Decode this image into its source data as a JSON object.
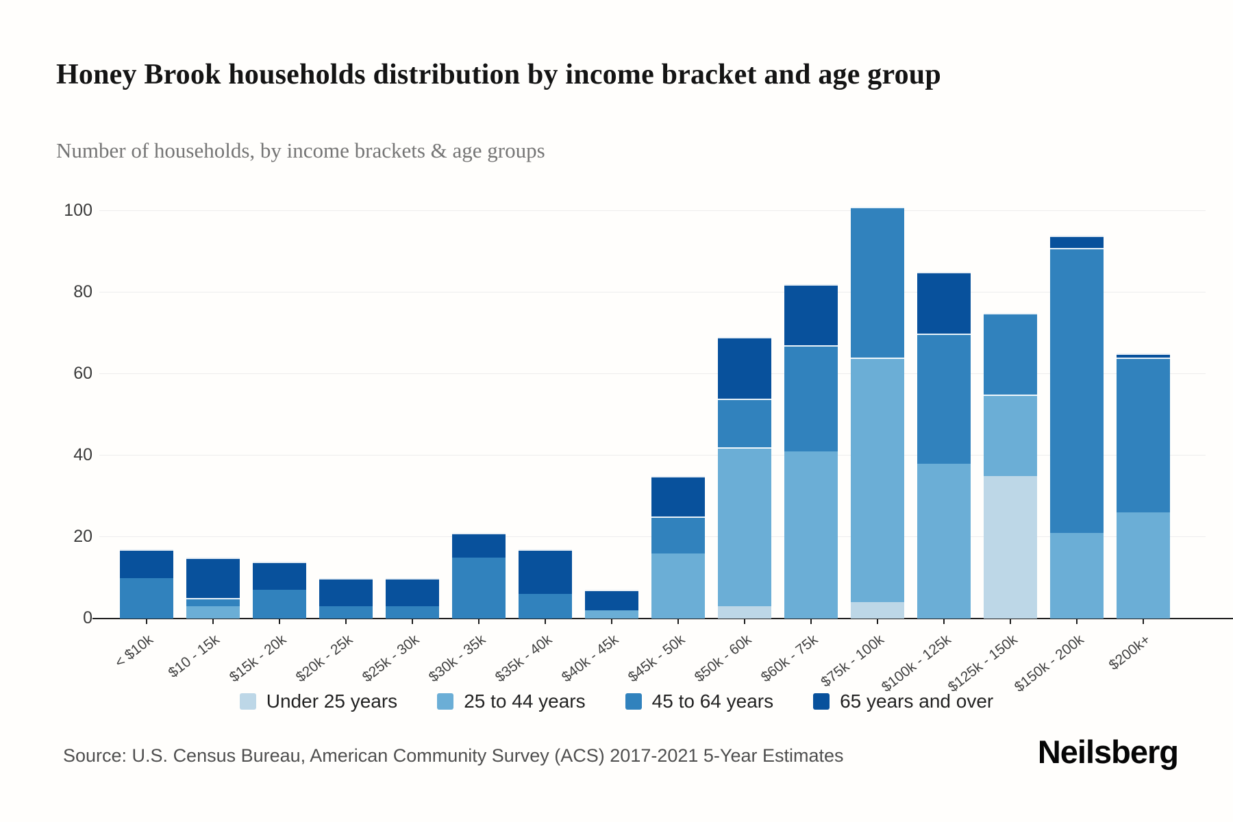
{
  "header": {
    "title": "Honey Brook households distribution by income bracket and age group",
    "subtitle": "Number of households, by income brackets & age groups"
  },
  "footer": {
    "source": "Source: U.S. Census Bureau, American Community Survey (ACS) 2017-2021 5-Year Estimates",
    "brand": "Neilsberg"
  },
  "chart_data": {
    "type": "bar",
    "stacked": true,
    "title": "Honey Brook households distribution by income bracket and age group",
    "xlabel": "",
    "ylabel": "Number of households",
    "grid": true,
    "legend_position": "bottom",
    "ylim": [
      0,
      103
    ],
    "yticks": [
      0,
      20,
      40,
      60,
      80,
      100
    ],
    "categories": [
      "< $10k",
      "$10 - 15k",
      "$15k - 20k",
      "$20k - 25k",
      "$25k - 30k",
      "$30k - 35k",
      "$35k - 40k",
      "$40k - 45k",
      "$45k - 50k",
      "$50k - 60k",
      "$60k - 75k",
      "$75k - 100k",
      "$100k - 125k",
      "$125k - 150k",
      "$150k - 200k",
      "$200k+"
    ],
    "series": [
      {
        "name": "Under 25 years",
        "color": "#bdd7e7",
        "values": [
          0,
          0,
          0,
          0,
          0,
          0,
          0,
          0,
          0,
          3,
          0,
          4,
          0,
          35,
          0,
          0
        ]
      },
      {
        "name": "25 to 44 years",
        "color": "#6baed6",
        "values": [
          0,
          3,
          0,
          0,
          0,
          0,
          0,
          2,
          16,
          39,
          41,
          60,
          38,
          20,
          21,
          26
        ]
      },
      {
        "name": "45 to 64 years",
        "color": "#3182bd",
        "values": [
          10,
          2,
          7,
          3,
          3,
          15,
          6,
          0,
          9,
          12,
          26,
          37,
          32,
          20,
          70,
          38
        ]
      },
      {
        "name": "65 years and over",
        "color": "#08519c",
        "values": [
          7,
          10,
          7,
          7,
          7,
          6,
          11,
          5,
          10,
          15,
          15,
          0,
          15,
          0,
          3,
          1
        ]
      }
    ],
    "totals": [
      17,
      15,
      14,
      10,
      10,
      21,
      17,
      7,
      35,
      69,
      82,
      101,
      85,
      75,
      94,
      65
    ]
  }
}
